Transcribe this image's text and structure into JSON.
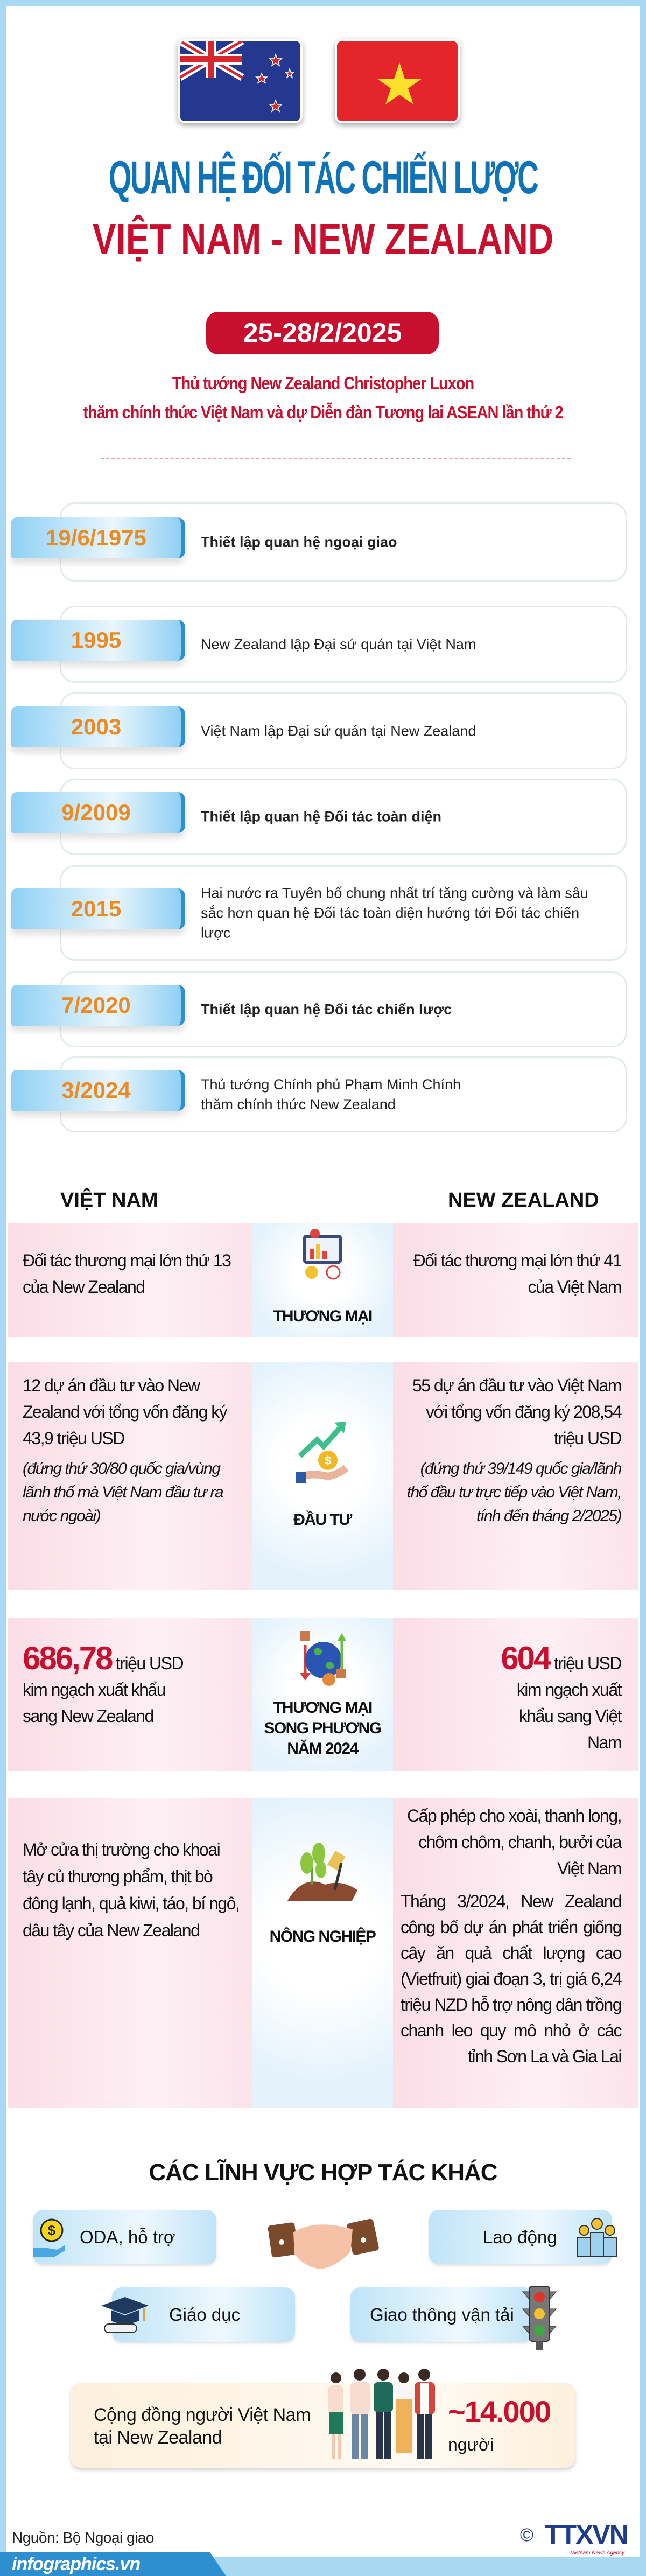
{
  "header": {
    "title_line1": "QUAN HỆ ĐỐI TÁC CHIẾN LƯỢC",
    "title_line2": "VIỆT NAM - NEW ZEALAND",
    "date": "25-28/2/2025",
    "subtitle_line1": "Thủ tướng New Zealand Christopher Luxon",
    "subtitle_line2": "thăm chính thức Việt Nam và dự Diễn đàn Tương lai ASEAN lần thứ 2",
    "flags": [
      "new-zealand-flag",
      "vietnam-flag"
    ]
  },
  "timeline": [
    {
      "date": "19/6/1975",
      "text": "Thiết lập quan hệ ngoại giao",
      "bold": true
    },
    {
      "date": "1995",
      "text": "New Zealand lập Đại sứ quán tại Việt Nam",
      "bold": false
    },
    {
      "date": "2003",
      "text": "Việt Nam lập Đại sứ quán tại New Zealand",
      "bold": false
    },
    {
      "date": "9/2009",
      "text": "Thiết lập quan hệ Đối tác toàn diện",
      "bold": true
    },
    {
      "date": "2015",
      "text": "Hai nước ra Tuyên bố chung nhất trí tăng cường và làm sâu sắc hơn quan hệ Đối tác toàn diện hướng tới Đối tác chiến lược",
      "bold": false
    },
    {
      "date": "7/2020",
      "text": "Thiết lập quan hệ Đối tác chiến lược",
      "bold": true
    },
    {
      "date": "3/2024",
      "text": "Thủ tướng Chính phủ Phạm Minh Chính thăm chính thức New Zealand",
      "bold": false
    }
  ],
  "comparison": {
    "left_header": "VIỆT NAM",
    "right_header": "NEW ZEALAND",
    "trade": {
      "label": "THƯƠNG MẠI",
      "left": "Đối tác thương mại lớn thứ 13 của New Zealand",
      "right": "Đối tác thương mại lớn thứ 41 của Việt Nam"
    },
    "investment": {
      "label": "ĐẦU TƯ",
      "left": "12 dự án đầu tư vào New Zealand với tổng vốn đăng ký 43,9 triệu USD",
      "left_note": "(đứng thứ 30/80 quốc gia/vùng lãnh thổ mà Việt Nam đầu tư ra nước ngoài)",
      "right": "55 dự án đầu tư vào Việt Nam với tổng vốn đăng ký 208,54 triệu USD",
      "right_note": "(đứng thứ 39/149 quốc gia/lãnh thổ đầu tư trực tiếp vào Việt Nam, tính đến tháng 2/2025)"
    },
    "bilateral": {
      "label": "THƯƠNG MẠI SONG PHƯƠNG NĂM 2024",
      "left_value": "686,78",
      "left_unit": "triệu USD",
      "left_text": "kim ngạch xuất khẩu sang New Zealand",
      "right_value": "604",
      "right_unit": "triệu USD",
      "right_text": "kim ngạch xuất khẩu sang Việt Nam"
    },
    "agriculture": {
      "label": "NÔNG NGHIỆP",
      "left": "Mở cửa thị trường cho khoai tây củ thương phẩm, thịt bò đông lạnh, quả kiwi, táo, bí ngô, dâu tây của New Zealand",
      "right1": "Cấp phép cho xoài, thanh long, chôm chôm, chanh, bưởi của Việt Nam",
      "right2": "Tháng 3/2024, New Zealand công bố dự án phát triển giống cây ăn quả chất lượng cao (Vietfruit) giai đoạn 3, trị giá 6,24 triệu NZD hỗ trợ nông dân trồng chanh leo quy mô nhỏ ở các tỉnh Sơn La và Gia Lai"
    }
  },
  "other": {
    "title": "CÁC LĨNH VỰC HỢP TÁC KHÁC",
    "items": [
      "ODA, hỗ trợ",
      "Lao động",
      "Giáo dục",
      "Giao thông vận tải"
    ],
    "community_label": "Cộng đồng người Việt Nam tại New Zealand",
    "community_value": "~14.000",
    "community_unit": "người"
  },
  "footer": {
    "source": "Nguồn: Bộ Ngoại giao",
    "site": "infographics.vn",
    "copyright": "©",
    "logo": "TTXVN",
    "logo_sub": "Vietnam News Agency"
  },
  "colors": {
    "blue": "#0f73b9",
    "red": "#c8102e",
    "orange": "#ec8b22",
    "frame": "#a9d8f2"
  }
}
